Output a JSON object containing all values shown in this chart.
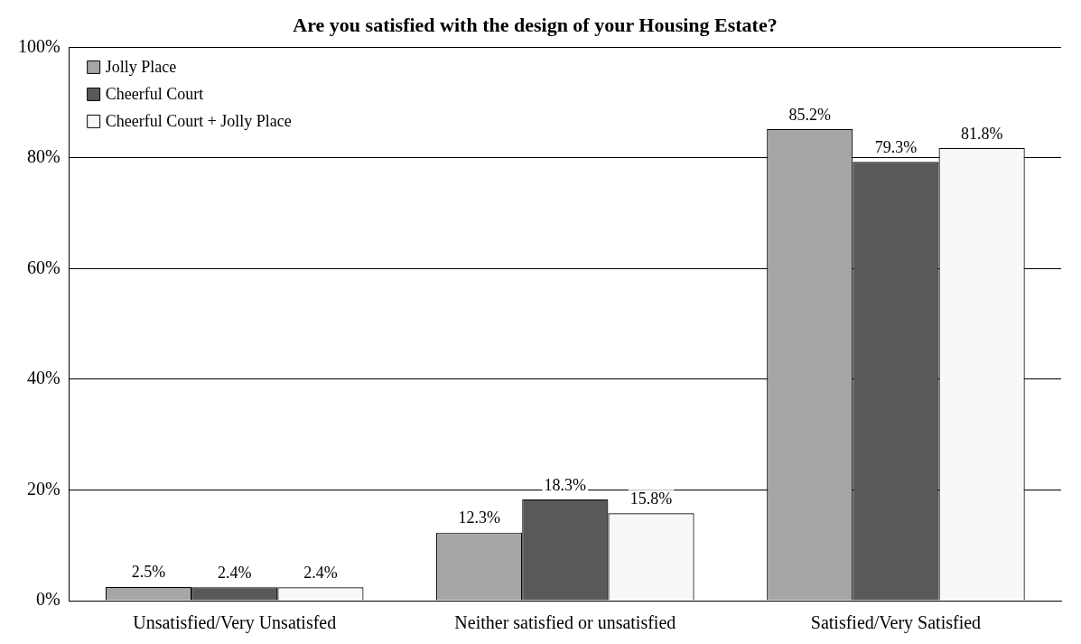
{
  "chart_data": {
    "type": "bar",
    "title": "Are you satisfied with the design of your Housing Estate?",
    "categories": [
      "Unsatisfied/Very Unsatisfed",
      "Neither satisfied or unsatisfied",
      "Satisfied/Very Satisfied"
    ],
    "series": [
      {
        "name": "Jolly Place",
        "color": "#a6a6a6",
        "values": [
          2.5,
          12.3,
          85.2
        ],
        "value_labels": [
          "2.5%",
          "12.3%",
          "85.2%"
        ]
      },
      {
        "name": "Cheerful Court",
        "color": "#595959",
        "values": [
          2.4,
          18.3,
          79.3
        ],
        "value_labels": [
          "2.4%",
          "18.3%",
          "79.3%"
        ]
      },
      {
        "name": "Cheerful Court + Jolly Place",
        "color": "#f8f8f8",
        "values": [
          2.4,
          15.8,
          81.8
        ],
        "value_labels": [
          "2.4%",
          "15.8%",
          "81.8%"
        ]
      }
    ],
    "ylim": [
      0,
      100
    ],
    "yticks": [
      {
        "value": 0,
        "label": "0%"
      },
      {
        "value": 20,
        "label": "20%"
      },
      {
        "value": 40,
        "label": "40%"
      },
      {
        "value": 60,
        "label": "60%"
      },
      {
        "value": 80,
        "label": "80%"
      },
      {
        "value": 100,
        "label": "100%"
      }
    ],
    "grid": "y",
    "legend": "top left"
  }
}
